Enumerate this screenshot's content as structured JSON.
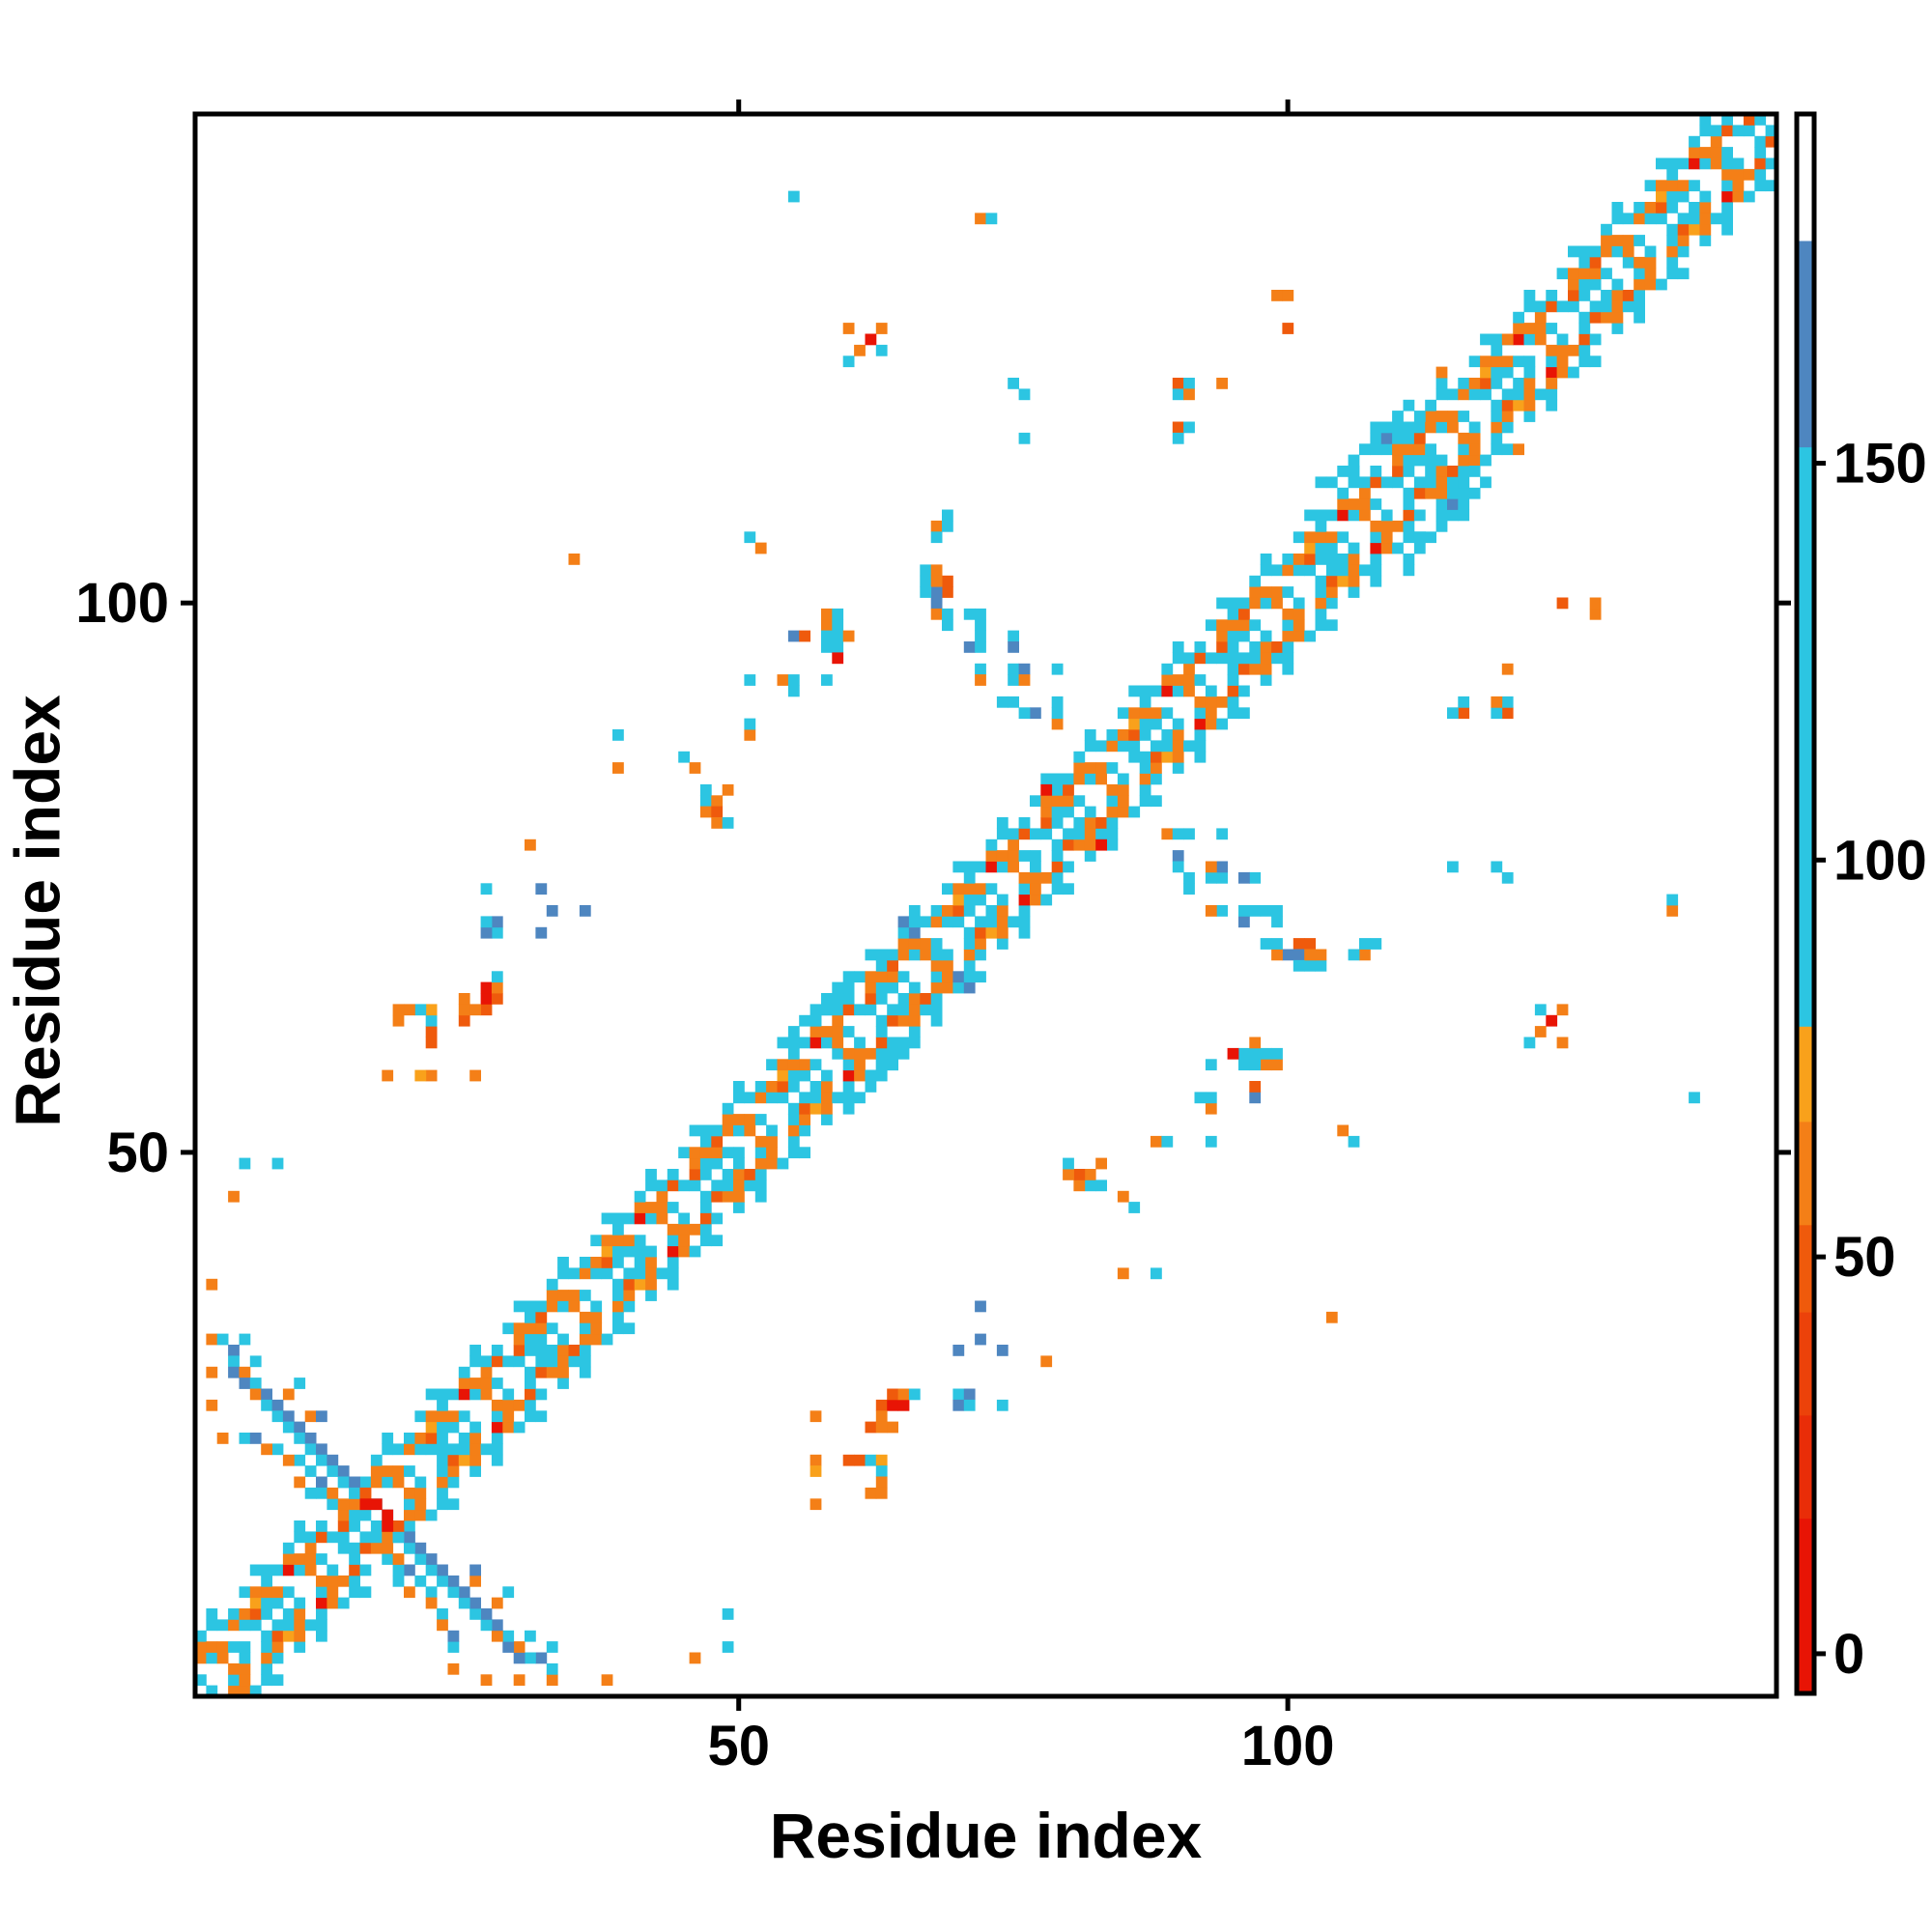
{
  "chart_data": {
    "type": "heatmap",
    "title": "",
    "xlabel": "Residue index",
    "ylabel": "Residue index",
    "x_range": [
      1,
      144
    ],
    "y_range": [
      1,
      144
    ],
    "xticks": [
      50,
      100
    ],
    "yticks": [
      50,
      100
    ],
    "grid": false,
    "legend_position": "right-colorbar",
    "n_residues": 144,
    "palette": {
      "r": "#e81405",
      "s": "#ef5a0c",
      "o": "#f47f17",
      "l": "#f9a11b",
      "c": "#2cc5e2",
      "b": "#4e86c0"
    },
    "colorbar": {
      "ticks": [
        0,
        50,
        100,
        150
      ],
      "vmin": -5,
      "vmax": 194,
      "segments": [
        {
          "from": 194,
          "to": 178,
          "color": "#ffffff"
        },
        {
          "from": 178,
          "to": 152,
          "color": "#4e86c0"
        },
        {
          "from": 152,
          "to": 79,
          "color": "#2cc5e2"
        },
        {
          "from": 79,
          "to": 67,
          "color": "#f9a11b"
        },
        {
          "from": 67,
          "to": 54,
          "color": "#f47f17"
        },
        {
          "from": 54,
          "to": 43,
          "color": "#ef5a0c"
        },
        {
          "from": 43,
          "to": 30,
          "color": "#ec420a"
        },
        {
          "from": 30,
          "to": 17,
          "color": "#e92d08"
        },
        {
          "from": 17,
          "to": -5,
          "color": "#e81405"
        }
      ]
    },
    "symmetric": true,
    "diagonal_band": {
      "start": 1,
      "end": 144,
      "stripes": [
        {
          "offset": 0,
          "cycle": [
            "",
            "",
            "",
            "",
            "",
            "c",
            "",
            "",
            ""
          ]
        },
        {
          "offset": 1,
          "cycle": [
            "c",
            "c",
            "",
            "o",
            "c",
            "",
            "c",
            "c"
          ]
        },
        {
          "offset": 2,
          "cycle": [
            "o",
            "",
            "c",
            "o",
            "",
            "c",
            "s",
            "c"
          ]
        },
        {
          "offset": 3,
          "cycle": [
            "s",
            "o",
            "o",
            "",
            "o",
            "o",
            "l",
            "o",
            "",
            "r",
            "o",
            "o",
            "s",
            "",
            "o",
            "o"
          ]
        },
        {
          "offset": 4,
          "cycle": [
            "c",
            "o",
            "",
            "c",
            "c",
            "",
            "o",
            "c"
          ]
        },
        {
          "offset": 5,
          "cycle": [
            "",
            "c",
            "c",
            "",
            "",
            "c",
            "",
            "c"
          ]
        },
        {
          "offset": 6,
          "cycle": [
            "",
            "",
            "c",
            "",
            "",
            "",
            "c",
            ""
          ]
        }
      ]
    },
    "pairs": [
      [
        2,
        38,
        "o"
      ],
      [
        2,
        33,
        "o"
      ],
      [
        5,
        33,
        "c"
      ],
      [
        2,
        30,
        "o"
      ],
      [
        2,
        27,
        "o"
      ],
      [
        4,
        46,
        "o"
      ],
      [
        5,
        49,
        "c"
      ],
      [
        8,
        49,
        "c"
      ],
      [
        3,
        33,
        "c"
      ],
      [
        4,
        32,
        "b"
      ],
      [
        4,
        31,
        "c"
      ],
      [
        4,
        30,
        "b"
      ],
      [
        5,
        30,
        "o"
      ],
      [
        5,
        29,
        "b"
      ],
      [
        6,
        29,
        "c"
      ],
      [
        6,
        28,
        "o"
      ],
      [
        7,
        28,
        "b"
      ],
      [
        7,
        27,
        "c"
      ],
      [
        8,
        27,
        "b"
      ],
      [
        8,
        26,
        "c"
      ],
      [
        9,
        26,
        "b"
      ],
      [
        9,
        25,
        "c"
      ],
      [
        10,
        25,
        "b"
      ],
      [
        10,
        24,
        "c"
      ],
      [
        11,
        24,
        "b"
      ],
      [
        11,
        23,
        "c"
      ],
      [
        12,
        23,
        "b"
      ],
      [
        12,
        22,
        "c"
      ],
      [
        13,
        22,
        "b"
      ],
      [
        13,
        21,
        "c"
      ],
      [
        14,
        21,
        "b"
      ],
      [
        14,
        20,
        "c"
      ],
      [
        15,
        20,
        "b"
      ],
      [
        15,
        19,
        "c"
      ],
      [
        16,
        19,
        "s"
      ],
      [
        16,
        18,
        "r"
      ],
      [
        17,
        18,
        "r"
      ],
      [
        9,
        28,
        "o"
      ],
      [
        11,
        26,
        "o"
      ],
      [
        12,
        26,
        "b"
      ],
      [
        10,
        29,
        "c"
      ],
      [
        6,
        31,
        "c"
      ],
      [
        3,
        24,
        "o"
      ],
      [
        5,
        24,
        "c"
      ],
      [
        10,
        22,
        "c"
      ],
      [
        11,
        21,
        "c"
      ],
      [
        12,
        20,
        "b"
      ],
      [
        12,
        19,
        "c"
      ],
      [
        13,
        19,
        "o"
      ],
      [
        11,
        19,
        "c"
      ],
      [
        10,
        20,
        "o"
      ],
      [
        9,
        22,
        "o"
      ],
      [
        8,
        23,
        "c"
      ],
      [
        7,
        23,
        "o"
      ],
      [
        6,
        24,
        "b"
      ],
      [
        26,
        57,
        "o"
      ],
      [
        27,
        63,
        "s"
      ],
      [
        27,
        64,
        "r"
      ],
      [
        27,
        65,
        "r"
      ],
      [
        28,
        64,
        "s"
      ],
      [
        28,
        65,
        "o"
      ],
      [
        28,
        66,
        "c"
      ],
      [
        26,
        63,
        "o"
      ],
      [
        25,
        62,
        "s"
      ],
      [
        25,
        63,
        "o"
      ],
      [
        25,
        64,
        "o"
      ],
      [
        22,
        60,
        "s"
      ],
      [
        22,
        61,
        "s"
      ],
      [
        22,
        62,
        "c"
      ],
      [
        22,
        63,
        "l"
      ],
      [
        22,
        57,
        "o"
      ],
      [
        21,
        57,
        "l"
      ],
      [
        21,
        63,
        "c"
      ],
      [
        20,
        63,
        "o"
      ],
      [
        19,
        62,
        "o"
      ],
      [
        19,
        63,
        "o"
      ],
      [
        18,
        57,
        "o"
      ],
      [
        32,
        70,
        "b"
      ],
      [
        32,
        74,
        "b"
      ],
      [
        28,
        70,
        "c"
      ],
      [
        28,
        71,
        "b"
      ],
      [
        27,
        70,
        "b"
      ],
      [
        27,
        71,
        "c"
      ],
      [
        27,
        74,
        "c"
      ],
      [
        31,
        78,
        "o"
      ],
      [
        35,
        104,
        "o"
      ],
      [
        33,
        72,
        "b"
      ],
      [
        36,
        72,
        "b"
      ],
      [
        39,
        85,
        "o"
      ],
      [
        39,
        88,
        "c"
      ],
      [
        47,
        82,
        "c"
      ],
      [
        48,
        82,
        "o"
      ],
      [
        47,
        81,
        "o"
      ],
      [
        48,
        81,
        "s"
      ],
      [
        48,
        80,
        "o"
      ],
      [
        49,
        80,
        "c"
      ],
      [
        49,
        83,
        "o"
      ],
      [
        47,
        83,
        "c"
      ],
      [
        45,
        86,
        "c"
      ],
      [
        46,
        85,
        "o"
      ],
      [
        51,
        106,
        "c"
      ],
      [
        52,
        105,
        "o"
      ],
      [
        51,
        88,
        "o"
      ],
      [
        51,
        89,
        "c"
      ],
      [
        51,
        93,
        "c"
      ],
      [
        54,
        93,
        "o"
      ],
      [
        55,
        93,
        "c"
      ],
      [
        55,
        92,
        "c"
      ],
      [
        58,
        93,
        "c"
      ],
      [
        58,
        99,
        "o"
      ],
      [
        58,
        98,
        "o"
      ],
      [
        59,
        99,
        "c"
      ],
      [
        59,
        98,
        "c"
      ],
      [
        59,
        97,
        "c"
      ],
      [
        59,
        96,
        "c"
      ],
      [
        55,
        97,
        "b"
      ],
      [
        56,
        97,
        "s"
      ],
      [
        58,
        97,
        "c"
      ],
      [
        58,
        96,
        "c"
      ],
      [
        59,
        95,
        "r"
      ],
      [
        60,
        97,
        "o"
      ],
      [
        60,
        125,
        "o"
      ],
      [
        62,
        124,
        "r"
      ],
      [
        63,
        125,
        "o"
      ],
      [
        60,
        122,
        "c"
      ],
      [
        61,
        123,
        "o"
      ],
      [
        63,
        123,
        "c"
      ],
      [
        55,
        137,
        "c"
      ],
      [
        72,
        135,
        "o"
      ],
      [
        73,
        135,
        "c"
      ],
      [
        68,
        107,
        "o"
      ],
      [
        69,
        108,
        "c"
      ],
      [
        69,
        107,
        "c"
      ],
      [
        67,
        103,
        "c"
      ],
      [
        67,
        102,
        "c"
      ],
      [
        68,
        103,
        "o"
      ],
      [
        69,
        102,
        "s"
      ],
      [
        69,
        101,
        "s"
      ],
      [
        68,
        101,
        "b"
      ],
      [
        68,
        100,
        "b"
      ],
      [
        68,
        99,
        "o"
      ],
      [
        69,
        99,
        "c"
      ],
      [
        69,
        98,
        "c"
      ],
      [
        71,
        99,
        "c"
      ],
      [
        72,
        99,
        "c"
      ],
      [
        72,
        98,
        "c"
      ],
      [
        72,
        97,
        "c"
      ],
      [
        71,
        96,
        "b"
      ],
      [
        72,
        96,
        "c"
      ],
      [
        75,
        97,
        "c"
      ],
      [
        75,
        96,
        "b"
      ],
      [
        72,
        94,
        "c"
      ],
      [
        72,
        93,
        "o"
      ],
      [
        75,
        94,
        "c"
      ],
      [
        76,
        94,
        "b"
      ],
      [
        75,
        93,
        "c"
      ],
      [
        76,
        93,
        "o"
      ],
      [
        79,
        94,
        "c"
      ],
      [
        74,
        91,
        "c"
      ],
      [
        75,
        91,
        "c"
      ],
      [
        79,
        91,
        "c"
      ],
      [
        76,
        115,
        "c"
      ],
      [
        75,
        120,
        "c"
      ],
      [
        79,
        89,
        "o"
      ],
      [
        79,
        90,
        "c"
      ],
      [
        77,
        90,
        "b"
      ],
      [
        76,
        90,
        "c"
      ],
      [
        68,
        102,
        "o"
      ],
      [
        67,
        101,
        "c"
      ],
      [
        68,
        106,
        "c"
      ],
      [
        76,
        119,
        "c"
      ],
      [
        90,
        120,
        "s"
      ],
      [
        91,
        120,
        "c"
      ],
      [
        90,
        119,
        "c"
      ],
      [
        91,
        119,
        "o"
      ],
      [
        94,
        120,
        "o"
      ],
      [
        90,
        116,
        "s"
      ],
      [
        91,
        116,
        "c"
      ],
      [
        90,
        115,
        "c"
      ],
      [
        99,
        128,
        "o"
      ],
      [
        100,
        128,
        "o"
      ],
      [
        100,
        125,
        "s"
      ],
      [
        114,
        121,
        "o"
      ],
      [
        120,
        124,
        "o"
      ],
      [
        105,
        112,
        "c"
      ],
      [
        106,
        112,
        "c"
      ],
      [
        106,
        113,
        "c"
      ],
      [
        107,
        114,
        "c"
      ],
      [
        108,
        114,
        "c"
      ],
      [
        108,
        115,
        "c"
      ],
      [
        109,
        115,
        "b"
      ],
      [
        108,
        116,
        "c"
      ],
      [
        109,
        116,
        "c"
      ],
      [
        110,
        115,
        "c"
      ],
      [
        110,
        117,
        "c"
      ],
      [
        111,
        116,
        "c"
      ],
      [
        111,
        118,
        "c"
      ],
      [
        112,
        117,
        "c"
      ],
      [
        104,
        111,
        "c"
      ],
      [
        103,
        111,
        "c"
      ],
      [
        78,
        83,
        "r"
      ],
      [
        65,
        71,
        "b"
      ],
      [
        66,
        70,
        "b"
      ],
      [
        66,
        71,
        "c"
      ],
      [
        57,
        62,
        "c"
      ],
      [
        57,
        63,
        "c"
      ],
      [
        58,
        63,
        "c"
      ],
      [
        58,
        64,
        "c"
      ],
      [
        59,
        64,
        "c"
      ],
      [
        59,
        65,
        "c"
      ],
      [
        60,
        65,
        "c"
      ],
      [
        60,
        66,
        "c"
      ],
      [
        56,
        62,
        "c"
      ],
      [
        55,
        61,
        "c"
      ]
    ]
  }
}
